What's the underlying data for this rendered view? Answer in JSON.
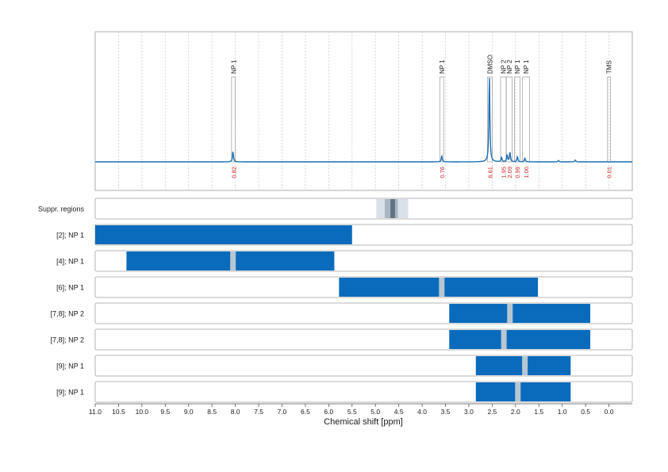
{
  "chart_data": {
    "type": "line",
    "xlabel": "Chemical shift [ppm]",
    "x_axis": {
      "reversed": true,
      "min": -0.5,
      "max": 11.0
    },
    "x_ticks": [
      {
        "value": 11.0,
        "label": "11.0"
      },
      {
        "value": 10.5,
        "label": "10.5"
      },
      {
        "value": 10.0,
        "label": "10.0"
      },
      {
        "value": 9.5,
        "label": "9.5"
      },
      {
        "value": 9.0,
        "label": "9.0"
      },
      {
        "value": 8.5,
        "label": "8.5"
      },
      {
        "value": 8.0,
        "label": "8.0"
      },
      {
        "value": 7.5,
        "label": "7.5"
      },
      {
        "value": 7.0,
        "label": "7.0"
      },
      {
        "value": 6.5,
        "label": "6.5"
      },
      {
        "value": 6.0,
        "label": "6.0"
      },
      {
        "value": 5.5,
        "label": "5.5"
      },
      {
        "value": 5.0,
        "label": "5.0"
      },
      {
        "value": 4.5,
        "label": "4.5"
      },
      {
        "value": 4.0,
        "label": "4.0"
      },
      {
        "value": 3.5,
        "label": "3.5"
      },
      {
        "value": 3.0,
        "label": "3.0"
      },
      {
        "value": 2.5,
        "label": "2.5"
      },
      {
        "value": 2.0,
        "label": "2.0"
      },
      {
        "value": 1.5,
        "label": "1.5"
      },
      {
        "value": 1.0,
        "label": "1.0"
      },
      {
        "value": 0.5,
        "label": "0.5"
      },
      {
        "value": 0.0,
        "label": "0.0"
      }
    ],
    "grid": true,
    "spectrum": {
      "color": "#1f6fb2",
      "peaks": [
        {
          "x": 8.05,
          "h": 0.12
        },
        {
          "x": 3.58,
          "h": 0.07
        },
        {
          "x": 2.56,
          "h": 1.0
        },
        {
          "x": 2.3,
          "h": 0.05
        },
        {
          "x": 2.18,
          "h": 0.08
        },
        {
          "x": 2.12,
          "h": 0.11
        },
        {
          "x": 1.96,
          "h": 0.06
        },
        {
          "x": 1.8,
          "h": 0.04
        },
        {
          "x": 1.08,
          "h": 0.015
        },
        {
          "x": 0.72,
          "h": 0.02
        }
      ]
    },
    "peak_annotations": [
      {
        "label": "NP 1",
        "x0": 8.08,
        "x1": 8.0,
        "integral": "0.82"
      },
      {
        "label": "NP 1",
        "x0": 3.62,
        "x1": 3.54,
        "integral": "0.76"
      },
      {
        "label": "DMSO",
        "x0": 2.6,
        "x1": 2.5,
        "integral": "6.61"
      },
      {
        "label": "NP 2",
        "x0": 2.32,
        "x1": 2.2,
        "integral": "1.95"
      },
      {
        "label": "NP 2",
        "x0": 2.2,
        "x1": 2.07,
        "integral": "2.09"
      },
      {
        "label": "NP 1",
        "x0": 2.02,
        "x1": 1.9,
        "integral": "0.99"
      },
      {
        "label": "NP 1",
        "x0": 1.85,
        "x1": 1.7,
        "integral": "1.00"
      },
      {
        "label": "TMS",
        "x0": 0.03,
        "x1": -0.03,
        "integral": "0.01"
      }
    ],
    "integral_color": "#cc2222",
    "suppression": {
      "label": "Suppr. regions",
      "outer": {
        "x0": 4.98,
        "x1": 4.3
      },
      "inner": {
        "x0": 4.8,
        "x1": 4.52
      },
      "core": {
        "x0": 4.68,
        "x1": 4.58
      }
    },
    "range_rows": [
      {
        "label": "[2]; NP 1",
        "x0": 11.0,
        "x1": 5.5,
        "gaps": []
      },
      {
        "label": "[4]; NP 1",
        "x0": 10.33,
        "x1": 5.88,
        "gaps": [
          8.05
        ]
      },
      {
        "label": "[6]; NP 1",
        "x0": 5.78,
        "x1": 1.52,
        "gaps": [
          3.58
        ]
      },
      {
        "label": "[7,8]; NP 2",
        "x0": 3.42,
        "x1": 0.4,
        "gaps": [
          2.12
        ]
      },
      {
        "label": "[7,8]; NP 2",
        "x0": 3.42,
        "x1": 0.4,
        "gaps": [
          2.25
        ]
      },
      {
        "label": "[9]; NP 1",
        "x0": 2.85,
        "x1": 0.82,
        "gaps": [
          1.8
        ]
      },
      {
        "label": "[9]; NP 1",
        "x0": 2.85,
        "x1": 0.82,
        "gaps": [
          1.95
        ]
      }
    ],
    "range_color": "#0a6bbd",
    "gap_color": "#b8c6d2"
  }
}
